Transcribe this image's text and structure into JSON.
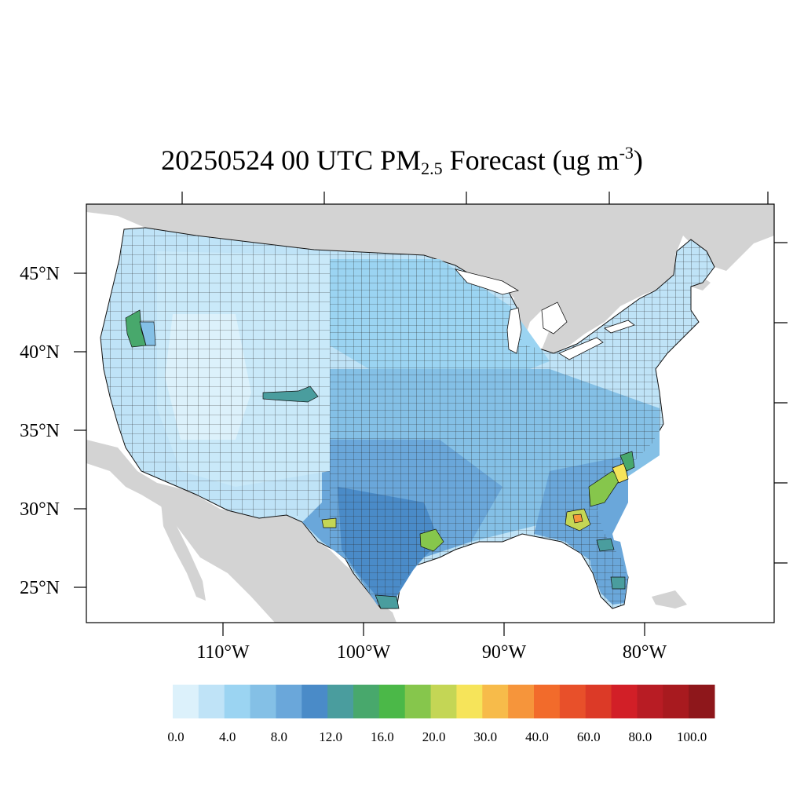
{
  "title": {
    "date_time": "20250524 00 UTC PM",
    "subscript": "2.5",
    "mid": " Forecast (ug m",
    "superscript": "-3",
    "end": ")"
  },
  "map": {
    "lat_labels": [
      {
        "lat": 45,
        "text": "45°N"
      },
      {
        "lat": 40,
        "text": "40°N"
      },
      {
        "lat": 35,
        "text": "35°N"
      },
      {
        "lat": 30,
        "text": "30°N"
      },
      {
        "lat": 25,
        "text": "25°N"
      }
    ],
    "lon_labels": [
      {
        "lon": -110,
        "text": "110°W"
      },
      {
        "lon": -100,
        "text": "100°W"
      },
      {
        "lon": -90,
        "text": "90°W"
      },
      {
        "lon": -80,
        "text": "80°W"
      }
    ],
    "colors": {
      "land_other": "#d3d3d3",
      "water": "#ffffff",
      "base_fill": "#bfe3f7",
      "county_line": "#222222"
    }
  },
  "colorbar": {
    "colors": [
      "#dcf1fb",
      "#bfe3f7",
      "#9bd4f2",
      "#84c0e6",
      "#6aa7da",
      "#4a8bc8",
      "#4a9d9e",
      "#48a86c",
      "#4bb848",
      "#86c64c",
      "#c4d655",
      "#f6e45a",
      "#f7bb4a",
      "#f6953b",
      "#f26b2b",
      "#e8502a",
      "#dc3a27",
      "#d21f27",
      "#b81c24",
      "#a81a1f",
      "#8e171b"
    ],
    "labels": [
      "0.0",
      "4.0",
      "8.0",
      "12.0",
      "16.0",
      "20.0",
      "30.0",
      "40.0",
      "60.0",
      "80.0",
      "100.0"
    ]
  }
}
